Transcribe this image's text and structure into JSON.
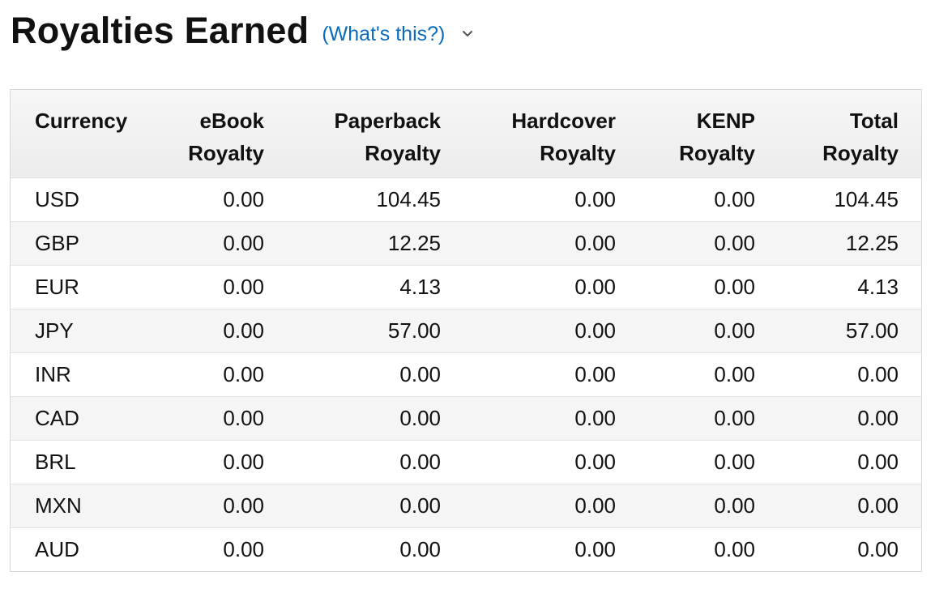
{
  "header": {
    "title": "Royalties Earned",
    "help_link": "(What's this?)",
    "toggle_icon": "chevron-down-icon"
  },
  "table": {
    "columns": [
      {
        "line1": "Currency",
        "line2": ""
      },
      {
        "line1": "eBook",
        "line2": "Royalty"
      },
      {
        "line1": "Paperback",
        "line2": "Royalty"
      },
      {
        "line1": "Hardcover",
        "line2": "Royalty"
      },
      {
        "line1": "KENP",
        "line2": "Royalty"
      },
      {
        "line1": "Total",
        "line2": "Royalty"
      }
    ],
    "rows": [
      [
        "USD",
        "0.00",
        "104.45",
        "0.00",
        "0.00",
        "104.45"
      ],
      [
        "GBP",
        "0.00",
        "12.25",
        "0.00",
        "0.00",
        "12.25"
      ],
      [
        "EUR",
        "0.00",
        "4.13",
        "0.00",
        "0.00",
        "4.13"
      ],
      [
        "JPY",
        "0.00",
        "57.00",
        "0.00",
        "0.00",
        "57.00"
      ],
      [
        "INR",
        "0.00",
        "0.00",
        "0.00",
        "0.00",
        "0.00"
      ],
      [
        "CAD",
        "0.00",
        "0.00",
        "0.00",
        "0.00",
        "0.00"
      ],
      [
        "BRL",
        "0.00",
        "0.00",
        "0.00",
        "0.00",
        "0.00"
      ],
      [
        "MXN",
        "0.00",
        "0.00",
        "0.00",
        "0.00",
        "0.00"
      ],
      [
        "AUD",
        "0.00",
        "0.00",
        "0.00",
        "0.00",
        "0.00"
      ]
    ]
  },
  "colors": {
    "link": "#0a6bbd",
    "text": "#111111",
    "border": "#d5d9d9",
    "header_bg": "#f0f0f0",
    "stripe_bg": "#f5f5f5"
  }
}
